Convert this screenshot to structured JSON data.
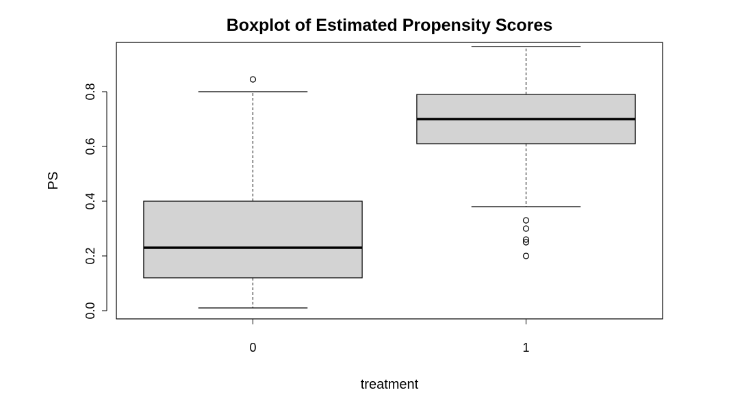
{
  "chart_data": {
    "type": "boxplot",
    "title": "Boxplot of Estimated Propensity Scores",
    "xlabel": "treatment",
    "ylabel": "PS",
    "categories": [
      "0",
      "1"
    ],
    "ylim": [
      -0.03,
      0.98
    ],
    "yticks": [
      "0.0",
      "0.2",
      "0.4",
      "0.6",
      "0.8"
    ],
    "grid": false,
    "box_fill": "#d3d3d3",
    "boxes": [
      {
        "name": "0",
        "whisker_low": 0.01,
        "q1": 0.12,
        "median": 0.23,
        "q3": 0.4,
        "whisker_high": 0.8,
        "outliers": [
          0.845
        ]
      },
      {
        "name": "1",
        "whisker_low": 0.38,
        "q1": 0.61,
        "median": 0.7,
        "q3": 0.79,
        "whisker_high": 0.965,
        "outliers": [
          0.33,
          0.3,
          0.26,
          0.25,
          0.2
        ]
      }
    ]
  }
}
